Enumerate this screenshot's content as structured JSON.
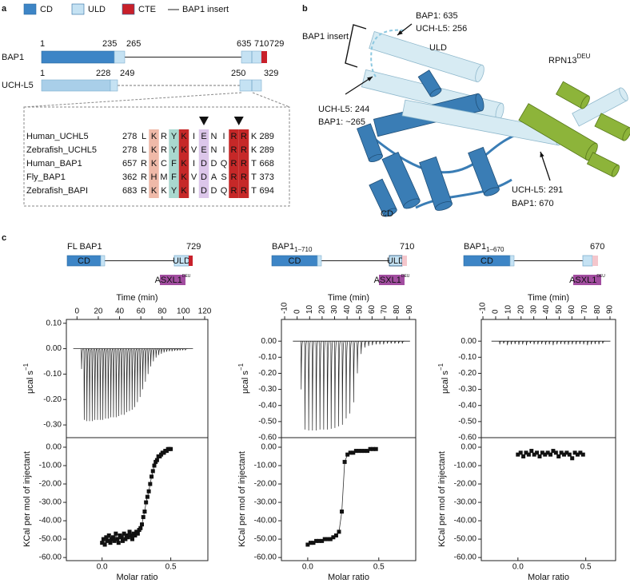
{
  "panel_a": {
    "label": "a",
    "legend": [
      "CD",
      "ULD",
      "CTE",
      "BAP1 insert"
    ],
    "bap1": {
      "name": "BAP1",
      "positions": [
        1,
        235,
        265,
        635,
        710,
        729
      ]
    },
    "uchl5": {
      "name": "UCH-L5",
      "positions": [
        1,
        228,
        249,
        250,
        329
      ]
    },
    "alignment": [
      {
        "name": "Human_UCHL5",
        "start": 278,
        "residues": [
          "L",
          "K",
          "R",
          "Y",
          "K",
          "I",
          "E",
          "N",
          "I",
          "R",
          "R",
          "K"
        ],
        "end": 289
      },
      {
        "name": "Zebrafish_UCHL5",
        "start": 278,
        "residues": [
          "L",
          "K",
          "R",
          "Y",
          "K",
          "V",
          "E",
          "N",
          "I",
          "R",
          "R",
          "K"
        ],
        "end": 289
      },
      {
        "name": "Human_BAP1",
        "start": 657,
        "residues": [
          "R",
          "K",
          "C",
          "F",
          "K",
          "I",
          "D",
          "D",
          "Q",
          "R",
          "R",
          "T"
        ],
        "end": 668
      },
      {
        "name": "Fly_BAP1",
        "start": 362,
        "residues": [
          "R",
          "H",
          "M",
          "F",
          "K",
          "V",
          "D",
          "A",
          "S",
          "R",
          "R",
          "T"
        ],
        "end": 373
      },
      {
        "name": "Zebrafish_BAPI",
        "start": 683,
        "residues": [
          "R",
          "K",
          "K",
          "Y",
          "K",
          "I",
          "D",
          "D",
          "Q",
          "R",
          "R",
          "T"
        ],
        "end": 694
      }
    ]
  },
  "panel_b": {
    "label": "b",
    "labels": [
      "BAP1: 635",
      "UCH-L5: 256",
      "BAP1 insert",
      "ULD",
      "UCH-L5: 244",
      "BAP1: ~265",
      "UCH-L5: 291",
      "BAP1: 670",
      "CD"
    ],
    "rpn13": "RPN13",
    "rpn13_sup": "DEU"
  },
  "panel_c": {
    "label": "c",
    "charts": [
      {
        "type": "itc",
        "construct": {
          "name": "FL BAP1",
          "end": 729,
          "domains": [
            "CD",
            "ULD"
          ],
          "tail_color": "#c8202a",
          "partner": "ASXL1",
          "partner_sup": "DEU"
        },
        "top": {
          "xlabel": "Time (min)",
          "ylabel": "μcal s",
          "ylabel_sup": "−1",
          "color": "#222222",
          "xlim": [
            -10,
            123
          ],
          "ylim": [
            -0.35,
            0.115
          ],
          "xticks": [
            0,
            20,
            40,
            60,
            80,
            100,
            120
          ],
          "yticks": [
            {
              "value": 0.1,
              "label": "0.10"
            },
            {
              "value": 0,
              "label": "0.00"
            },
            {
              "value": -0.1,
              "label": "-0.10"
            },
            {
              "value": -0.2,
              "label": "-0.20"
            },
            {
              "value": -0.3,
              "label": "-0.30"
            }
          ],
          "x": [
            4,
            6.5,
            9,
            11.5,
            14,
            16.5,
            19,
            21.5,
            24,
            26.5,
            29,
            31.5,
            34,
            36.5,
            39,
            41.5,
            44,
            46.5,
            49,
            51.5,
            54,
            56.5,
            59,
            61.5,
            64,
            66.5,
            69,
            71.5,
            74,
            76.5,
            79,
            81.5,
            84,
            86.5,
            89,
            91.5,
            94,
            96.5,
            99,
            101.5
          ],
          "values": [
            -0.08,
            -0.28,
            -0.285,
            -0.285,
            -0.285,
            -0.28,
            -0.28,
            -0.28,
            -0.28,
            -0.275,
            -0.275,
            -0.27,
            -0.27,
            -0.27,
            -0.265,
            -0.26,
            -0.26,
            -0.25,
            -0.245,
            -0.24,
            -0.23,
            -0.21,
            -0.19,
            -0.16,
            -0.13,
            -0.1,
            -0.07,
            -0.05,
            -0.035,
            -0.025,
            -0.02,
            -0.015,
            -0.012,
            -0.01,
            -0.01,
            -0.008,
            -0.008,
            -0.007,
            -0.006,
            -0.006
          ]
        },
        "bottom": {
          "xlabel": "Molar ratio",
          "ylabel": "KCal per mol of injectant",
          "color": "#111111",
          "fit_line": true,
          "xlim": [
            -0.26,
            0.77
          ],
          "ylim": [
            -61.7,
            5.2
          ],
          "xticks": [
            {
              "value": 0,
              "label": "0.0"
            },
            0.5
          ],
          "yticks": [
            {
              "value": 0,
              "label": "0.00"
            },
            {
              "value": -10,
              "label": "-10.00"
            },
            {
              "value": -20,
              "label": "-20.00"
            },
            {
              "value": -30,
              "label": "-30.00"
            },
            {
              "value": -40,
              "label": "-40.00"
            },
            {
              "value": -50,
              "label": "-50.00"
            },
            {
              "value": -60,
              "label": "-60.00"
            }
          ],
          "x": [
            0,
            0.01,
            0.02,
            0.03,
            0.04,
            0.05,
            0.06,
            0.07,
            0.08,
            0.09,
            0.1,
            0.11,
            0.12,
            0.13,
            0.14,
            0.15,
            0.16,
            0.17,
            0.18,
            0.19,
            0.2,
            0.21,
            0.22,
            0.23,
            0.24,
            0.25,
            0.26,
            0.27,
            0.28,
            0.29,
            0.3,
            0.31,
            0.32,
            0.33,
            0.34,
            0.35,
            0.36,
            0.37,
            0.38,
            0.39,
            0.4,
            0.41,
            0.42,
            0.43,
            0.44,
            0.45,
            0.46,
            0.47,
            0.48,
            0.49,
            0.5
          ],
          "values": [
            -52,
            -50,
            -53,
            -49,
            -51,
            -48,
            -52,
            -50,
            -49,
            -51,
            -47,
            -50,
            -52,
            -48,
            -49,
            -51,
            -47,
            -50,
            -48,
            -49,
            -46,
            -48,
            -50,
            -47,
            -48,
            -46,
            -47,
            -45,
            -44,
            -42,
            -38,
            -35,
            -30,
            -27,
            -24,
            -20,
            -16,
            -13,
            -10,
            -8,
            -7,
            -5,
            -5,
            -4,
            -3,
            -3,
            -2,
            -2,
            -1,
            -1,
            -1
          ]
        }
      },
      {
        "type": "itc",
        "construct": {
          "name": "BAP1",
          "name_sub": "1–710",
          "end": 710,
          "domains": [
            "CD",
            "ULD"
          ],
          "tail_color": "#f4c6cc",
          "partner": "ASXL1",
          "partner_sup": "DEU"
        },
        "top": {
          "xlabel": "Time (min)",
          "ylabel": "μcal s",
          "ylabel_sup": "−1",
          "color": "#222222",
          "xlim": [
            -12.6,
            95
          ],
          "ylim": [
            -0.6,
            0.135
          ],
          "xticks": [
            -10,
            0,
            10,
            20,
            30,
            40,
            50,
            60,
            70,
            80,
            90
          ],
          "yticks": [
            {
              "value": 0,
              "label": "0.00"
            },
            {
              "value": -0.1,
              "label": "-0.10"
            },
            {
              "value": -0.2,
              "label": "-0.20"
            },
            {
              "value": -0.3,
              "label": "-0.30"
            },
            {
              "value": -0.4,
              "label": "-0.40"
            },
            {
              "value": -0.5,
              "label": "-0.50"
            },
            {
              "value": -0.6,
              "label": "-0.60"
            }
          ],
          "x": [
            3,
            6,
            9,
            12,
            15,
            18,
            21,
            24,
            27,
            30,
            33,
            36,
            39,
            42,
            45,
            48,
            51,
            54,
            57,
            60,
            63,
            66,
            69,
            72,
            75,
            78,
            81,
            84
          ],
          "values": [
            -0.3,
            -0.55,
            -0.555,
            -0.555,
            -0.555,
            -0.55,
            -0.55,
            -0.55,
            -0.545,
            -0.54,
            -0.53,
            -0.52,
            -0.48,
            -0.45,
            -0.38,
            -0.2,
            -0.08,
            -0.04,
            -0.03,
            -0.025,
            -0.02,
            -0.02,
            -0.02,
            -0.015,
            -0.015,
            -0.015,
            -0.015,
            -0.015
          ]
        },
        "bottom": {
          "xlabel": "Molar ratio",
          "ylabel": "KCal per mol of injectant",
          "color": "#111111",
          "fit_line": true,
          "xlim": [
            -0.185,
            0.76
          ],
          "ylim": [
            -61.7,
            5.2
          ],
          "xticks": [
            {
              "value": 0,
              "label": "0.0"
            },
            0.5
          ],
          "yticks": [
            {
              "value": 0,
              "label": "0.00"
            },
            {
              "value": -10,
              "label": "-10.00"
            },
            {
              "value": -20,
              "label": "-20.00"
            },
            {
              "value": -30,
              "label": "-30.00"
            },
            {
              "value": -40,
              "label": "-40.00"
            },
            {
              "value": -50,
              "label": "-50.00"
            },
            {
              "value": -60,
              "label": "-60.00"
            }
          ],
          "x": [
            0,
            0.02,
            0.04,
            0.06,
            0.08,
            0.1,
            0.12,
            0.14,
            0.16,
            0.18,
            0.2,
            0.22,
            0.24,
            0.26,
            0.28,
            0.3,
            0.32,
            0.34,
            0.36,
            0.38,
            0.4,
            0.42,
            0.44,
            0.46,
            0.48
          ],
          "values": [
            -53,
            -52,
            -52,
            -51,
            -51,
            -51,
            -50,
            -50,
            -50,
            -49,
            -48,
            -46,
            -35,
            -8,
            -4,
            -3,
            -3,
            -2,
            -2,
            -2,
            -2,
            -2,
            -1,
            -1,
            -1
          ]
        }
      },
      {
        "type": "itc",
        "construct": {
          "name": "BAP1",
          "name_sub": "1–670",
          "end": 670,
          "domains": [
            "CD"
          ],
          "tail_color": "#f4c6cc",
          "partner": "ASXL1",
          "partner_sup": "DEU"
        },
        "top": {
          "xlabel": "Time (min)",
          "ylabel": "μcal s",
          "ylabel_sup": "−1",
          "color": "#222222",
          "xlim": [
            -11.3,
            94.4
          ],
          "ylim": [
            -0.6,
            0.135
          ],
          "xticks": [
            -10,
            0,
            10,
            20,
            30,
            40,
            50,
            60,
            70,
            80,
            90
          ],
          "yticks": [
            {
              "value": 0,
              "label": "0.00"
            },
            {
              "value": -0.1,
              "label": "-0.10"
            },
            {
              "value": -0.2,
              "label": "-0.20"
            },
            {
              "value": -0.3,
              "label": "-0.30"
            },
            {
              "value": -0.4,
              "label": "-0.40"
            },
            {
              "value": -0.5,
              "label": "-0.50"
            },
            {
              "value": -0.6,
              "label": "-0.60"
            }
          ],
          "x": [
            3,
            6,
            9,
            12,
            15,
            18,
            21,
            24,
            27,
            30,
            33,
            36,
            39,
            42,
            45,
            48,
            51,
            54,
            57,
            60,
            63,
            66,
            69,
            72,
            75,
            78,
            81,
            84
          ],
          "values": [
            -0.02,
            -0.015,
            -0.025,
            -0.02,
            -0.018,
            -0.022,
            -0.02,
            -0.025,
            -0.015,
            -0.02,
            -0.02,
            -0.018,
            -0.022,
            -0.02,
            -0.025,
            -0.02,
            -0.018,
            -0.02,
            -0.022,
            -0.02,
            -0.02,
            -0.018,
            -0.02,
            -0.025,
            -0.02,
            -0.018,
            -0.02,
            -0.015
          ]
        },
        "bottom": {
          "xlabel": "Molar ratio",
          "ylabel": "KCal per mol of injectant",
          "color": "#111111",
          "fit_line": false,
          "xlim": [
            -0.27,
            0.72
          ],
          "ylim": [
            -61.7,
            5.2
          ],
          "xticks": [
            {
              "value": 0,
              "label": "0.0"
            },
            0.5
          ],
          "yticks": [
            {
              "value": 0,
              "label": "0.00"
            },
            {
              "value": -10,
              "label": "-10.00"
            },
            {
              "value": -20,
              "label": "-20.00"
            },
            {
              "value": -30,
              "label": "-30.00"
            },
            {
              "value": -40,
              "label": "-40.00"
            },
            {
              "value": -50,
              "label": "-50.00"
            },
            {
              "value": -60,
              "label": "-60.00"
            }
          ],
          "x": [
            0,
            0.02,
            0.04,
            0.06,
            0.08,
            0.1,
            0.12,
            0.14,
            0.16,
            0.18,
            0.2,
            0.22,
            0.24,
            0.26,
            0.28,
            0.3,
            0.32,
            0.34,
            0.36,
            0.38,
            0.4,
            0.42,
            0.44,
            0.46,
            0.48
          ],
          "values": [
            -4,
            -3,
            -5,
            -3,
            -4,
            -2,
            -4,
            -3,
            -5,
            -3,
            -4,
            -3,
            -4,
            -2,
            -3,
            -5,
            -3,
            -4,
            -3,
            -4,
            -6,
            -3,
            -4,
            -3,
            -4
          ]
        }
      }
    ]
  }
}
